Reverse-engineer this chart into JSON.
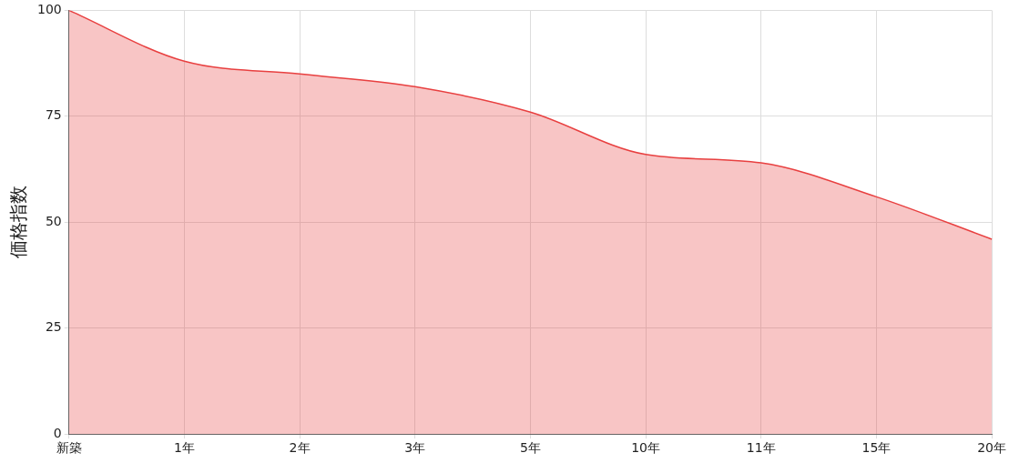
{
  "chart_data": {
    "type": "area",
    "ylabel": "価格指数",
    "categories": [
      "新築",
      "1年",
      "2年",
      "3年",
      "5年",
      "10年",
      "11年",
      "15年",
      "20年"
    ],
    "series": [
      {
        "color": "#e84040",
        "values": [
          100,
          88,
          85,
          82,
          76,
          66,
          64,
          56,
          46
        ]
      }
    ],
    "ylim": [
      0,
      100
    ],
    "yticks": [
      0,
      25,
      50,
      75,
      100
    ],
    "grid": true,
    "legend": false,
    "marker": "none"
  }
}
